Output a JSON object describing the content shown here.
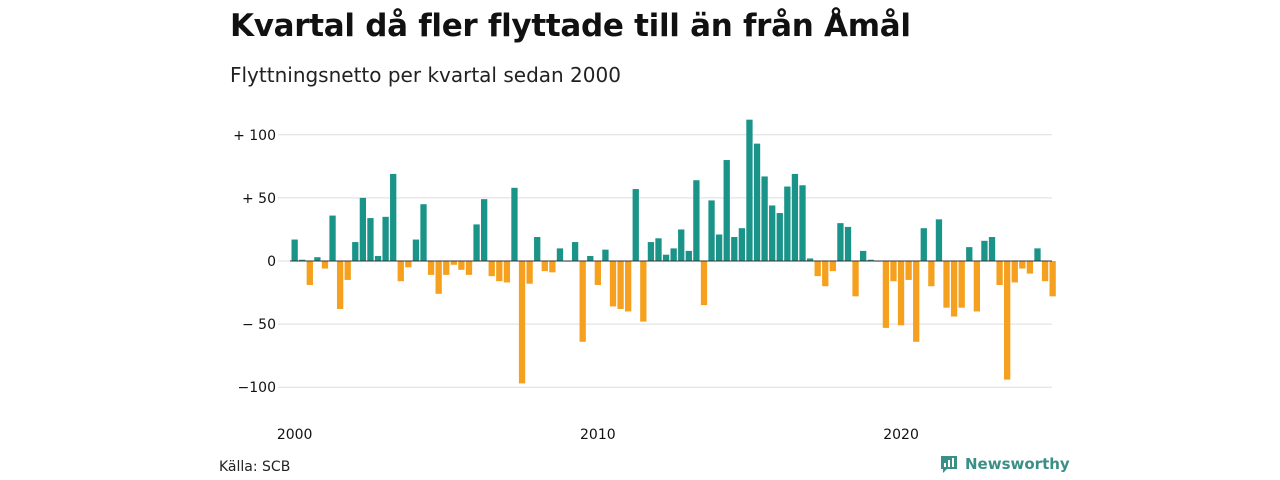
{
  "header": {
    "title": "Kvartal då fler flyttade till än från Åmål",
    "subtitle": "Flyttningsnetto per kvartal sedan 2000"
  },
  "footer": {
    "source": "Källa: SCB",
    "brand": "Newsworthy"
  },
  "colors": {
    "positive": "#1a9388",
    "negative": "#f5a11f",
    "grid": "#dddddd",
    "brand": "#3a8f87"
  },
  "chart_data": {
    "type": "bar",
    "title": "Kvartal då fler flyttade till än från Åmål",
    "subtitle": "Flyttningsnetto per kvartal sedan 2000",
    "xlabel": "",
    "ylabel": "",
    "ylim": [
      -100,
      112
    ],
    "grid": true,
    "legend": "none",
    "y_ticks": [
      {
        "value": 100,
        "label": "+ 100"
      },
      {
        "value": 50,
        "label": "+  50"
      },
      {
        "value": 0,
        "label": "0"
      },
      {
        "value": -50,
        "label": "− 50"
      },
      {
        "value": -100,
        "label": "−100"
      }
    ],
    "x_ticks": [
      "2000",
      "2010",
      "2020"
    ],
    "start_year": 2000,
    "categories": [
      "2000 K1",
      "2000 K2",
      "2000 K3",
      "2000 K4",
      "2001 K1",
      "2001 K2",
      "2001 K3",
      "2001 K4",
      "2002 K1",
      "2002 K2",
      "2002 K3",
      "2002 K4",
      "2003 K1",
      "2003 K2",
      "2003 K3",
      "2003 K4",
      "2004 K1",
      "2004 K2",
      "2004 K3",
      "2004 K4",
      "2005 K1",
      "2005 K2",
      "2005 K3",
      "2005 K4",
      "2006 K1",
      "2006 K2",
      "2006 K3",
      "2006 K4",
      "2007 K1",
      "2007 K2",
      "2007 K3",
      "2007 K4",
      "2008 K1",
      "2008 K2",
      "2008 K3",
      "2008 K4",
      "2009 K1",
      "2009 K2",
      "2009 K3",
      "2009 K4",
      "2010 K1",
      "2010 K2",
      "2010 K3",
      "2010 K4",
      "2011 K1",
      "2011 K2",
      "2011 K3",
      "2011 K4",
      "2012 K1",
      "2012 K2",
      "2012 K3",
      "2012 K4",
      "2013 K1",
      "2013 K2",
      "2013 K3",
      "2013 K4",
      "2014 K1",
      "2014 K2",
      "2014 K3",
      "2014 K4",
      "2015 K1",
      "2015 K2",
      "2015 K3",
      "2015 K4",
      "2016 K1",
      "2016 K2",
      "2016 K3",
      "2016 K4",
      "2017 K1",
      "2017 K2",
      "2017 K3",
      "2017 K4",
      "2018 K1",
      "2018 K2",
      "2018 K3",
      "2018 K4",
      "2019 K1",
      "2019 K2",
      "2019 K3",
      "2019 K4",
      "2020 K1",
      "2020 K2",
      "2020 K3",
      "2020 K4",
      "2021 K1",
      "2021 K2",
      "2021 K3",
      "2021 K4",
      "2022 K1",
      "2022 K2",
      "2022 K3",
      "2022 K4",
      "2023 K1",
      "2023 K2",
      "2023 K3",
      "2023 K4",
      "2024 K1",
      "2024 K2",
      "2024 K3",
      "2024 K4",
      "2025 K1"
    ],
    "values": [
      17,
      1,
      -19,
      3,
      -6,
      36,
      -38,
      -15,
      15,
      50,
      34,
      4,
      35,
      69,
      -16,
      -5,
      17,
      45,
      -11,
      -26,
      -11,
      -3,
      -7,
      -11,
      29,
      49,
      -12,
      -16,
      -17,
      58,
      -97,
      -18,
      19,
      -8,
      -9,
      10,
      0,
      15,
      -64,
      4,
      -19,
      9,
      -36,
      -38,
      -40,
      57,
      -48,
      15,
      18,
      5,
      10,
      25,
      8,
      64,
      -35,
      48,
      21,
      80,
      19,
      26,
      112,
      93,
      67,
      44,
      38,
      59,
      69,
      60,
      2,
      -12,
      -20,
      -8,
      30,
      27,
      -28,
      8,
      1,
      0,
      -53,
      -16,
      -51,
      -15,
      -64,
      26,
      -20,
      33,
      -37,
      -44,
      -37,
      11,
      -40,
      16,
      19,
      -19,
      -94,
      -17,
      -6,
      -10,
      10,
      -16,
      -28
    ]
  }
}
